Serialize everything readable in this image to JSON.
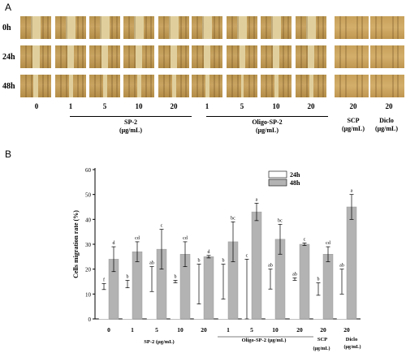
{
  "panel_a": {
    "letter": "A",
    "rows": [
      "0h",
      "24h",
      "48h"
    ],
    "concentrations": [
      "0",
      "1",
      "5",
      "10",
      "20",
      "1",
      "5",
      "10",
      "20",
      "20",
      "20"
    ],
    "groups": [
      {
        "name": "SP-2",
        "unit": "(μg/mL)"
      },
      {
        "name": "Oligo-SP-2",
        "unit": "(μg/mL)"
      },
      {
        "name": "SCP",
        "unit": "(μg/mL)"
      },
      {
        "name": "Diclo",
        "unit": "(μg/mL)"
      }
    ]
  },
  "chart_data": {
    "type": "bar",
    "panel_letter": "B",
    "ylabel": "Cells migration rate (%)",
    "ylim": [
      0,
      60
    ],
    "yticks": [
      "0",
      "10",
      "20",
      "30",
      "40",
      "50",
      "60"
    ],
    "legend": {
      "position": "top-right"
    },
    "categories": [
      "0",
      "1",
      "5",
      "10",
      "20",
      "1",
      "5",
      "10",
      "20",
      "20",
      "20"
    ],
    "group_labels": [
      {
        "text": "SP-2  (μg/mL)"
      },
      {
        "text": "Oligo-SP-2 (μg/mL)"
      },
      {
        "text": "SCP"
      },
      {
        "text": "Diclo"
      },
      {
        "text": "(μg/mL)"
      },
      {
        "text": "(μg/mL)"
      }
    ],
    "series": [
      {
        "name": "24h",
        "color": "#ffffff",
        "values": [
          13,
          14,
          16,
          15,
          14,
          15,
          12,
          16,
          16,
          12,
          15
        ],
        "errors": [
          1.2,
          1.5,
          5,
          0.5,
          8,
          7,
          12,
          4,
          0.5,
          2.5,
          5
        ],
        "letters": [
          "f",
          "b",
          "ab",
          "b",
          "b",
          "b",
          "c",
          "ab",
          "ab",
          "b",
          "ab"
        ]
      },
      {
        "name": "48h",
        "color": "#b3b3b3",
        "values": [
          24,
          27,
          28,
          26,
          25,
          31,
          43,
          32,
          30,
          26,
          45
        ],
        "errors": [
          5,
          4,
          8,
          5,
          0.5,
          8,
          3.5,
          6,
          0.5,
          3,
          5
        ],
        "letters": [
          "d",
          "cd",
          "c",
          "cd",
          "d",
          "bc",
          "a",
          "bc",
          "c",
          "cd",
          "a"
        ]
      }
    ]
  }
}
